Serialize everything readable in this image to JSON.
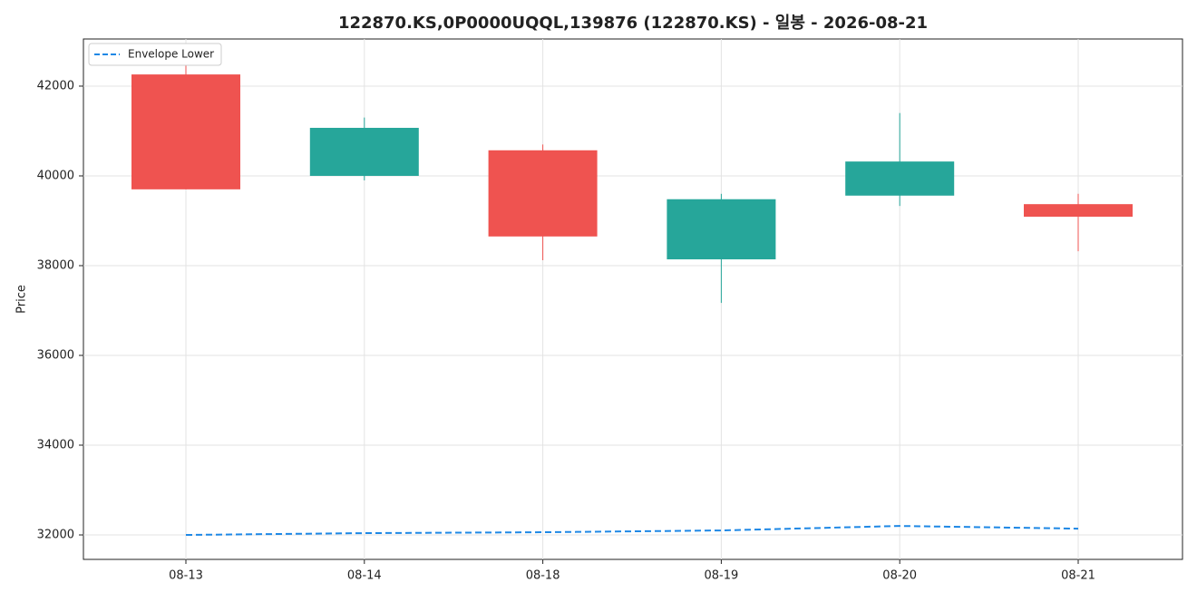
{
  "chart_data": {
    "type": "candlestick",
    "title": "122870.KS,0P0000UQQL,139876 (122870.KS) - 일봉 - 2026-08-21",
    "y_label": "Price",
    "categories": [
      "08-13",
      "08-14",
      "08-18",
      "08-19",
      "08-20",
      "08-21"
    ],
    "open": [
      39700,
      41070,
      38650,
      39480,
      40320,
      39090
    ],
    "high": [
      42460,
      41300,
      40700,
      39600,
      41400,
      39600
    ],
    "low": [
      39700,
      39900,
      38120,
      37170,
      39330,
      38320
    ],
    "close": [
      42260,
      40000,
      40570,
      38140,
      39560,
      39370
    ],
    "up_color": "#ef5350",
    "down_color": "#26a69a",
    "series": [
      {
        "name": "Envelope Lower",
        "color": "#1e88e5",
        "dash": true,
        "values": [
          32000,
          32040,
          32060,
          32100,
          32200,
          32140
        ]
      }
    ],
    "ylim": [
      31455,
      43050
    ],
    "yticks": [
      32000,
      34000,
      36000,
      38000,
      40000,
      42000
    ],
    "grid": true,
    "legend": "upper left"
  }
}
